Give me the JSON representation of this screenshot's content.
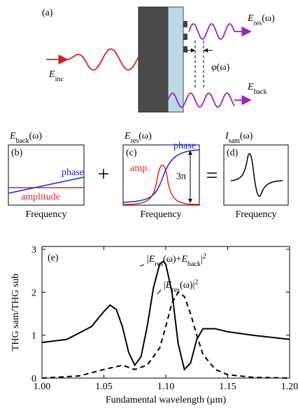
{
  "panel_a": {
    "label": "(a)",
    "e_inc": [
      {
        "text": "E",
        "style": "italic"
      },
      {
        "text": "inc",
        "style": "sub"
      }
    ],
    "e_res": [
      {
        "text": "E",
        "style": "italic"
      },
      {
        "text": "res",
        "style": "sub"
      },
      {
        "text": "(ω)"
      }
    ],
    "phi": [
      {
        "text": "φ",
        "style": "italic"
      },
      {
        "text": "(ω)"
      }
    ],
    "e_back": [
      {
        "text": "E",
        "style": "italic"
      },
      {
        "text": "back",
        "style": "sub"
      }
    ]
  },
  "panel_b": {
    "header": [
      {
        "text": "E",
        "style": "italic"
      },
      {
        "text": "back",
        "style": "sub"
      },
      {
        "text": "(ω)"
      }
    ],
    "label": "(b)",
    "phase": "phase",
    "amplitude": "amplitude",
    "xlabel": "Frequency"
  },
  "plus": "+",
  "panel_c": {
    "header": [
      {
        "text": "E",
        "style": "italic"
      },
      {
        "text": "res",
        "style": "sub"
      },
      {
        "text": "(ω)"
      }
    ],
    "label": "(c)",
    "phase": "phase",
    "amp": "amp.",
    "range": "3π",
    "xlabel": "Frequency"
  },
  "equals": "=",
  "panel_d": {
    "header": [
      {
        "text": "I",
        "style": "italic"
      },
      {
        "text": "sam",
        "style": "sub"
      },
      {
        "text": "(ω)"
      }
    ],
    "label": "(d)",
    "xlabel": "Frequency"
  },
  "chart_data": {
    "type": "line",
    "panel_label": "(e)",
    "xlabel": "Fundamental wavelength (μm)",
    "ylabel": "THG sam/THG sub",
    "xlim": [
      1.0,
      1.2
    ],
    "ylim": [
      0,
      3
    ],
    "xticks": [
      {
        "value": 1.0,
        "label": "1.00"
      },
      {
        "value": 1.05,
        "label": "1.05"
      },
      {
        "value": 1.1,
        "label": "1.10"
      },
      {
        "value": 1.15,
        "label": "1.15"
      },
      {
        "value": 1.2,
        "label": "1.20"
      }
    ],
    "yticks": [
      0,
      1,
      2,
      3
    ],
    "annotations": [
      [
        {
          "text": "|"
        },
        {
          "text": "E",
          "style": "italic"
        },
        {
          "text": "res",
          "style": "sub"
        },
        {
          "text": "(ω)+"
        },
        {
          "text": "E",
          "style": "italic"
        },
        {
          "text": "back",
          "style": "sub"
        },
        {
          "text": "|"
        },
        {
          "text": "2",
          "style": "sup"
        }
      ],
      [
        {
          "text": "|"
        },
        {
          "text": "E",
          "style": "italic"
        },
        {
          "text": "res",
          "style": "sub"
        },
        {
          "text": "(ω)|"
        },
        {
          "text": "2",
          "style": "sup"
        }
      ]
    ],
    "series": [
      {
        "color": "#000000",
        "dash": "solid",
        "x": [
          1.0,
          1.02,
          1.04,
          1.05,
          1.055,
          1.06,
          1.065,
          1.07,
          1.075,
          1.08,
          1.085,
          1.09,
          1.095,
          1.098,
          1.1,
          1.105,
          1.11,
          1.115,
          1.12,
          1.125,
          1.13,
          1.14,
          1.15,
          1.17,
          1.2
        ],
        "values": [
          0.83,
          0.9,
          1.2,
          1.55,
          1.7,
          1.6,
          1.2,
          0.6,
          0.3,
          0.5,
          1.2,
          2.1,
          2.65,
          2.72,
          2.65,
          2.0,
          0.8,
          0.2,
          0.35,
          0.9,
          1.15,
          1.15,
          1.08,
          1.0,
          0.9
        ]
      },
      {
        "color": "#000000",
        "dash": "dashed",
        "x": [
          1.0,
          1.03,
          1.05,
          1.065,
          1.075,
          1.085,
          1.095,
          1.1,
          1.105,
          1.11,
          1.115,
          1.12,
          1.125,
          1.13,
          1.14,
          1.15,
          1.17,
          1.2
        ],
        "values": [
          0,
          0.05,
          0.2,
          0.3,
          0.2,
          0.3,
          0.7,
          1.2,
          1.75,
          2.0,
          1.9,
          1.5,
          1.0,
          0.55,
          0.2,
          0.08,
          0.02,
          0
        ]
      }
    ]
  }
}
